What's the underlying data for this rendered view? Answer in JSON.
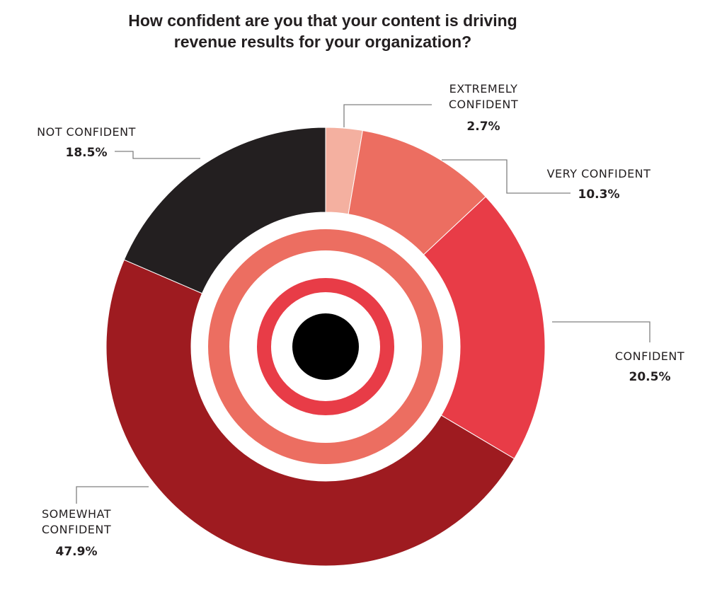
{
  "chart_data": {
    "type": "pie",
    "title_lines": [
      "How confident are you that your content is driving",
      "revenue results for your organization?"
    ],
    "slices": [
      {
        "label_lines": [
          "EXTREMELY",
          "CONFIDENT"
        ],
        "value": 2.7,
        "value_label": "2.7%",
        "color": "#f4b0a0"
      },
      {
        "label_lines": [
          "VERY CONFIDENT"
        ],
        "value": 10.3,
        "value_label": "10.3%",
        "color": "#ec6e61"
      },
      {
        "label_lines": [
          "CONFIDENT"
        ],
        "value": 20.5,
        "value_label": "20.5%",
        "color": "#e83c47"
      },
      {
        "label_lines": [
          "SOMEWHAT",
          "CONFIDENT"
        ],
        "value": 47.9,
        "value_label": "47.9%",
        "color": "#9e1b20"
      },
      {
        "label_lines": [
          "NOT CONFIDENT"
        ],
        "value": 18.5,
        "value_label": "18.5%",
        "color": "#231f20"
      }
    ],
    "center_rings": [
      "#ec6e61",
      "#e83c47",
      "#000000"
    ]
  }
}
